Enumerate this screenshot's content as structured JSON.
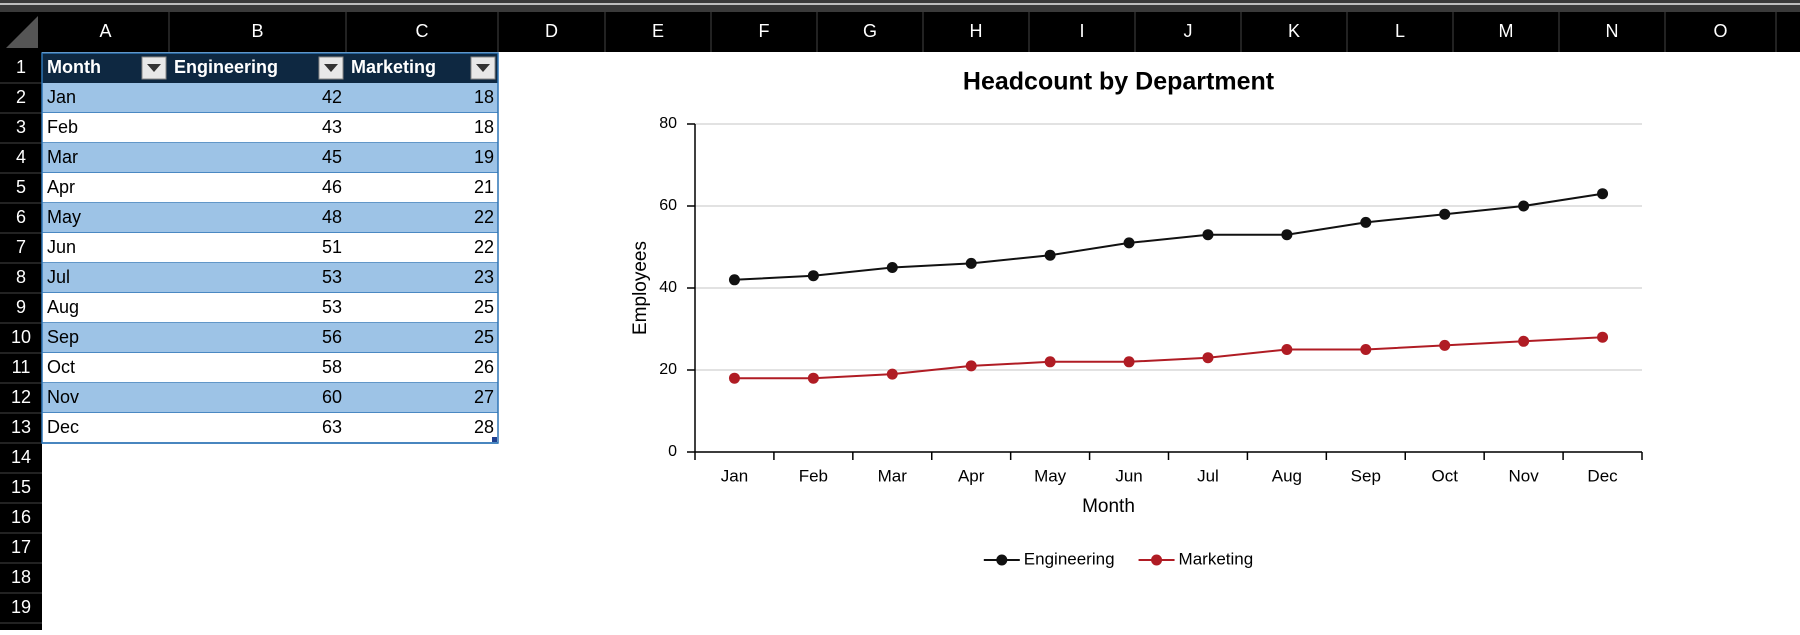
{
  "columns": [
    "A",
    "B",
    "C",
    "D",
    "E",
    "F",
    "G",
    "H",
    "I",
    "J",
    "K",
    "L",
    "M",
    "N",
    "O"
  ],
  "row_numbers": [
    1,
    2,
    3,
    4,
    5,
    6,
    7,
    8,
    9,
    10,
    11,
    12,
    13,
    14,
    15,
    16,
    17,
    18,
    19
  ],
  "table": {
    "header": [
      "Month",
      "Engineering",
      "Marketing"
    ],
    "rows": [
      [
        "Jan",
        42,
        18
      ],
      [
        "Feb",
        43,
        18
      ],
      [
        "Mar",
        45,
        19
      ],
      [
        "Apr",
        46,
        21
      ],
      [
        "May",
        48,
        22
      ],
      [
        "Jun",
        51,
        22
      ],
      [
        "Jul",
        53,
        23
      ],
      [
        "Aug",
        53,
        25
      ],
      [
        "Sep",
        56,
        25
      ],
      [
        "Oct",
        58,
        26
      ],
      [
        "Nov",
        60,
        27
      ],
      [
        "Dec",
        63,
        28
      ]
    ]
  },
  "chart_data": {
    "type": "line",
    "title": "Headcount by Department",
    "x_label": "Month",
    "y_label": "Employees",
    "categories": [
      "Jan",
      "Feb",
      "Mar",
      "Apr",
      "May",
      "Jun",
      "Jul",
      "Aug",
      "Sep",
      "Oct",
      "Nov",
      "Dec"
    ],
    "series": [
      {
        "name": "Engineering",
        "color": "#111111",
        "values": [
          42,
          43,
          45,
          46,
          48,
          51,
          53,
          53,
          56,
          58,
          60,
          63
        ]
      },
      {
        "name": "Marketing",
        "color": "#b01c24",
        "values": [
          18,
          18,
          19,
          21,
          22,
          22,
          23,
          25,
          25,
          26,
          27,
          28
        ]
      }
    ],
    "ylim": [
      0,
      80
    ],
    "yticks": [
      0,
      20,
      40,
      60,
      80
    ],
    "grid": true,
    "legend": "bottom"
  }
}
